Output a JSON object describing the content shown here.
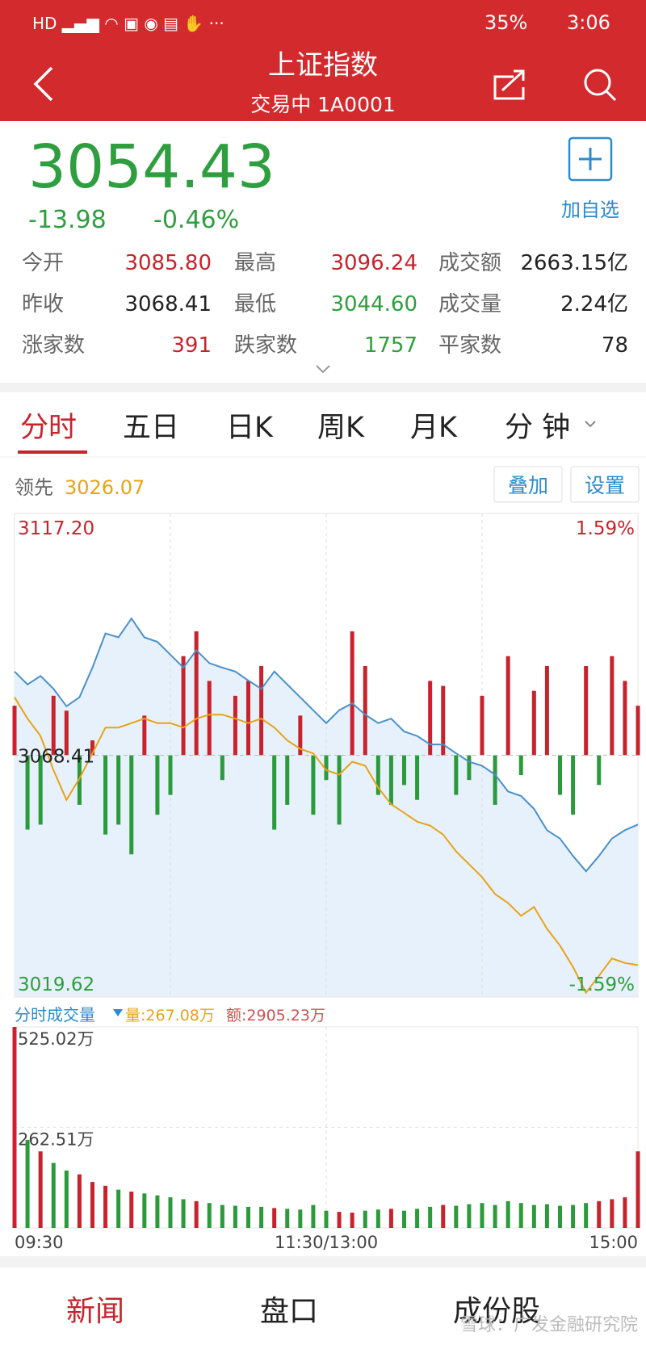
{
  "status_bar": {
    "battery": "35%",
    "time": "3:06"
  },
  "header": {
    "title": "上证指数",
    "subtitle": "交易中 1A0001"
  },
  "quote": {
    "price": "3054.43",
    "change": "-13.98",
    "change_pct": "-0.46%",
    "add_label": "加自选",
    "stats": [
      [
        [
          "今开",
          "3085.80"
        ],
        [
          "最高",
          "3096.24"
        ],
        [
          "成交额",
          "2663.15亿"
        ]
      ],
      [
        [
          "昨收",
          "3068.41"
        ],
        [
          "最低",
          "3044.60"
        ],
        [
          "成交量",
          "2.24亿"
        ]
      ],
      [
        [
          "涨家数",
          "391"
        ],
        [
          "跌家数",
          "1757"
        ],
        [
          "平家数",
          "78"
        ]
      ]
    ]
  },
  "tabs": [
    "分时",
    "五日",
    "日K",
    "周K",
    "月K",
    "分 钟"
  ],
  "overlay_buttons": [
    "叠加",
    "设置"
  ],
  "volume_info": {
    "amount": "量:267.08万",
    "turnover": "额:2905.23万"
  },
  "chart_data": [
    {
      "type": "line",
      "x": [
        0,
        5,
        10,
        15,
        20,
        25,
        30,
        35,
        40,
        45,
        50,
        55,
        60,
        65,
        70,
        75,
        80,
        85,
        90,
        95,
        100,
        105,
        110,
        115,
        120,
        125,
        130,
        135,
        140,
        145,
        150,
        155,
        160,
        165,
        170,
        175,
        180,
        185,
        190,
        195,
        200,
        205,
        210,
        215,
        220,
        225,
        230,
        235,
        240
      ],
      "xlim": [
        0,
        240
      ],
      "xgrid": [
        60,
        120,
        180
      ],
      "ylim": [
        3019.62,
        3117.2
      ],
      "yticks": [
        {
          "value": 3117.2,
          "label": "3117.20"
        },
        3068.41,
        3019.62
      ],
      "pct_labels": [
        "1.59%",
        "-1.59%"
      ],
      "series": [
        {
          "color": "#4a90c8",
          "values": [
            3085.3,
            3082.7,
            3084.4,
            3081.8,
            3078.3,
            3080.1,
            3086.1,
            3093.0,
            3092.2,
            3096.0,
            3092.2,
            3091.3,
            3088.7,
            3086.1,
            3089.6,
            3087.0,
            3086.1,
            3085.3,
            3083.5,
            3081.8,
            3085.3,
            3082.7,
            3080.1,
            3077.5,
            3074.9,
            3077.5,
            3078.9,
            3076.6,
            3074.9,
            3075.8,
            3073.2,
            3072.3,
            3070.6,
            3070.6,
            3068.8,
            3067.1,
            3066.3,
            3064.5,
            3061.1,
            3060.2,
            3057.6,
            3053.3,
            3051.6,
            3048.1,
            3045.0,
            3048.1,
            3051.6,
            3053.3,
            3054.43
          ]
        },
        {
          "name": "领先",
          "color": "#e8a317",
          "values": [
            3080.1,
            3075.8,
            3072.3,
            3065.4,
            3059.4,
            3063.7,
            3068.8,
            3074.0,
            3074.0,
            3074.9,
            3075.8,
            3074.9,
            3074.9,
            3074.0,
            3075.8,
            3076.6,
            3076.6,
            3075.8,
            3074.9,
            3075.8,
            3074.0,
            3071.4,
            3069.7,
            3068.8,
            3065.4,
            3064.5,
            3067.1,
            3066.3,
            3061.9,
            3058.5,
            3056.8,
            3055.0,
            3054.2,
            3052.4,
            3049.0,
            3046.4,
            3043.8,
            3040.4,
            3038.6,
            3036.0,
            3037.8,
            3033.4,
            3030.0,
            3025.7,
            3020.5,
            3023.9,
            3027.4,
            3026.5,
            3026.07
          ],
          "last_label": "3026.07"
        }
      ],
      "bars": {
        "up_color": "#c8232c",
        "down_color": "#2a9a3a",
        "values": [
          10,
          -15,
          -14,
          12,
          9,
          -10,
          3,
          -16,
          -14,
          -20,
          8,
          -12,
          -8,
          20,
          25,
          15,
          -5,
          12,
          15,
          18,
          -15,
          -10,
          8,
          -12,
          -5,
          -14,
          25,
          18,
          -8,
          -10,
          -6,
          -9,
          15,
          14,
          -8,
          -5,
          12,
          -10,
          20,
          -4,
          13,
          18,
          -8,
          -12,
          18,
          -6,
          20,
          15,
          10
        ]
      }
    },
    {
      "type": "bar",
      "title": "分时成交量",
      "x": [
        0,
        5,
        10,
        15,
        20,
        25,
        30,
        35,
        40,
        45,
        50,
        55,
        60,
        65,
        70,
        75,
        80,
        85,
        90,
        95,
        100,
        105,
        110,
        115,
        120,
        125,
        130,
        135,
        140,
        145,
        150,
        155,
        160,
        165,
        170,
        175,
        180,
        185,
        190,
        195,
        200,
        205,
        210,
        215,
        220,
        225,
        230,
        235,
        240
      ],
      "xlim": [
        0,
        240
      ],
      "xticks": [
        {
          "value": 0,
          "label": "09:30"
        },
        {
          "value": 120,
          "label": "11:30/13:00"
        },
        {
          "value": 240,
          "label": "15:00"
        }
      ],
      "ylim": [
        0,
        525.02
      ],
      "yticks": [
        {
          "value": 525.02,
          "label": "525.02万"
        },
        {
          "value": 262.51,
          "label": "262.51万"
        }
      ],
      "values": [
        525,
        230,
        200,
        170,
        150,
        140,
        120,
        110,
        100,
        95,
        90,
        85,
        80,
        75,
        70,
        65,
        60,
        58,
        55,
        55,
        52,
        50,
        48,
        60,
        45,
        42,
        40,
        45,
        48,
        50,
        45,
        50,
        55,
        60,
        58,
        62,
        65,
        60,
        70,
        65,
        60,
        62,
        58,
        60,
        65,
        70,
        75,
        80,
        200
      ]
    }
  ],
  "bottom_nav": [
    "新闻",
    "盘口",
    "成份股"
  ],
  "watermark": "雪球：广发金融研究院"
}
